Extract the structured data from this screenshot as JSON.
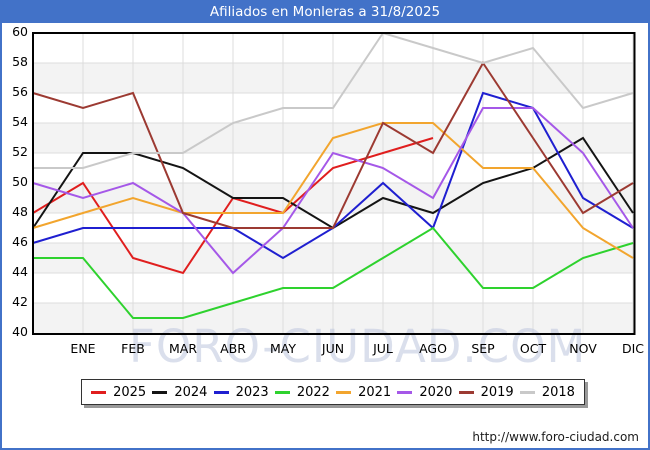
{
  "title": "Afiliados en Monleras a 31/8/2025",
  "footer": {
    "url_text": "http://www.foro-ciudad.com"
  },
  "watermark": "FORO-CIUDAD.COM",
  "colors": {
    "frame_blue": "#4272c8",
    "gridline": "#dcdcdc",
    "band_light": "#f3f3f3",
    "watermark": "#c3cbe0"
  },
  "legend": {
    "items": [
      {
        "label": "2025",
        "color": "#e01e1e"
      },
      {
        "label": "2024",
        "color": "#141414"
      },
      {
        "label": "2023",
        "color": "#1f1fd0"
      },
      {
        "label": "2022",
        "color": "#2ed22e"
      },
      {
        "label": "2021",
        "color": "#f2a52e"
      },
      {
        "label": "2020",
        "color": "#a558e8"
      },
      {
        "label": "2019",
        "color": "#9c3a32"
      },
      {
        "label": "2018",
        "color": "#c9c9c9"
      }
    ]
  },
  "chart_data": {
    "type": "line",
    "title": "Afiliados en Monleras a 31/8/2025",
    "xlabel": "",
    "ylabel": "",
    "ylim": [
      40,
      60
    ],
    "y_ticks": [
      60,
      58,
      56,
      54,
      52,
      50,
      48,
      46,
      44,
      42,
      40
    ],
    "months": [
      "ENE",
      "FEB",
      "MAR",
      "ABR",
      "MAY",
      "JUN",
      "JUL",
      "AGO",
      "SEP",
      "OCT",
      "NOV",
      "DIC"
    ],
    "note": "Each series has 13 points: the first sits on the left axis (unlabeled), the following 12 on the month gridlines. 2025 data ends in AGO.",
    "grid": true,
    "legend_position": "bottom",
    "series": [
      {
        "name": "2025",
        "color": "#e01e1e",
        "points": [
          48,
          50,
          45,
          44,
          49,
          48,
          51,
          52,
          53,
          null,
          null,
          null,
          null
        ]
      },
      {
        "name": "2024",
        "color": "#141414",
        "points": [
          47,
          52,
          52,
          51,
          49,
          49,
          47,
          49,
          48,
          50,
          51,
          53,
          48
        ]
      },
      {
        "name": "2023",
        "color": "#1f1fd0",
        "points": [
          46,
          47,
          47,
          47,
          47,
          45,
          47,
          50,
          47,
          56,
          55,
          49,
          47
        ]
      },
      {
        "name": "2022",
        "color": "#2ed22e",
        "points": [
          45,
          45,
          41,
          41,
          42,
          43,
          43,
          45,
          47,
          43,
          43,
          45,
          46
        ]
      },
      {
        "name": "2021",
        "color": "#f2a52e",
        "points": [
          47,
          48,
          49,
          48,
          48,
          48,
          53,
          54,
          54,
          51,
          51,
          47,
          45
        ]
      },
      {
        "name": "2020",
        "color": "#a558e8",
        "points": [
          50,
          49,
          50,
          48,
          44,
          47,
          52,
          51,
          49,
          55,
          55,
          52,
          47
        ]
      },
      {
        "name": "2019",
        "color": "#9c3a32",
        "points": [
          56,
          55,
          56,
          48,
          47,
          47,
          47,
          54,
          52,
          58,
          53,
          48,
          50
        ]
      },
      {
        "name": "2018",
        "color": "#c9c9c9",
        "points": [
          51,
          51,
          52,
          52,
          54,
          55,
          55,
          60,
          59,
          58,
          59,
          55,
          56
        ]
      }
    ]
  }
}
